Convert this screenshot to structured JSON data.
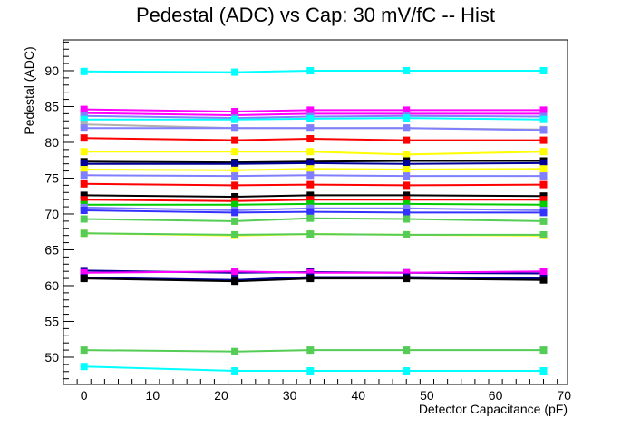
{
  "chart_data": {
    "type": "line",
    "title": "Pedestal (ADC) vs Cap: 30 mV/fC -- Hist",
    "xlabel": "Detector Capacitance (pF)",
    "ylabel": "Pedestal (ADC)",
    "xlim": [
      -3,
      70.5
    ],
    "ylim": [
      46.2,
      94.3
    ],
    "x": [
      0,
      22,
      33,
      47,
      67
    ],
    "xticks": [
      0,
      10,
      20,
      30,
      40,
      50,
      60,
      70
    ],
    "yticks": [
      50,
      55,
      60,
      65,
      70,
      75,
      80,
      85,
      90
    ],
    "grid": false,
    "series": [
      {
        "color": "#00ffff",
        "values": [
          89.9,
          89.8,
          90.0,
          90.0,
          90.0
        ]
      },
      {
        "color": "#ff00ff",
        "values": [
          84.6,
          84.3,
          84.5,
          84.5,
          84.5
        ]
      },
      {
        "color": "#ff00ff",
        "values": [
          84.1,
          83.8,
          84.0,
          84.0,
          84.0
        ]
      },
      {
        "color": "#7f7fff",
        "values": [
          83.7,
          83.4,
          83.6,
          83.7,
          83.6
        ]
      },
      {
        "color": "#00ffff",
        "values": [
          83.2,
          83.2,
          83.3,
          83.4,
          83.2
        ]
      },
      {
        "color": "#b0b0b0",
        "values": [
          82.5,
          82.0,
          82.0,
          82.0,
          81.8
        ]
      },
      {
        "color": "#7f7fff",
        "values": [
          82.0,
          82.0,
          82.0,
          82.0,
          81.7
        ]
      },
      {
        "color": "#ff0000",
        "values": [
          80.6,
          80.3,
          80.5,
          80.3,
          80.3
        ]
      },
      {
        "color": "#ffff00",
        "values": [
          78.7,
          78.7,
          78.7,
          78.3,
          78.7
        ]
      },
      {
        "color": "#000000",
        "values": [
          77.3,
          77.2,
          77.3,
          77.4,
          77.4
        ]
      },
      {
        "color": "#000099",
        "values": [
          77.0,
          77.0,
          77.1,
          77.0,
          77.1
        ]
      },
      {
        "color": "#ffff00",
        "values": [
          76.2,
          76.1,
          76.3,
          76.2,
          76.3
        ]
      },
      {
        "color": "#7f7fff",
        "values": [
          75.4,
          75.3,
          75.4,
          75.3,
          75.3
        ]
      },
      {
        "color": "#ff0000",
        "values": [
          74.2,
          74.0,
          74.1,
          74.0,
          74.1
        ]
      },
      {
        "color": "#000000",
        "values": [
          72.6,
          72.4,
          72.6,
          72.6,
          72.5
        ]
      },
      {
        "color": "#ff0000",
        "values": [
          72.0,
          71.8,
          72.0,
          72.0,
          72.0
        ]
      },
      {
        "color": "#00cc00",
        "values": [
          71.3,
          71.3,
          71.4,
          71.4,
          71.3
        ]
      },
      {
        "color": "#7f7fff",
        "values": [
          70.9,
          70.5,
          70.8,
          70.8,
          70.5
        ]
      },
      {
        "color": "#3333ff",
        "values": [
          70.5,
          70.2,
          70.3,
          70.2,
          70.2
        ]
      },
      {
        "color": "#55cc55",
        "values": [
          69.3,
          69.0,
          69.4,
          69.3,
          69.0
        ]
      },
      {
        "color": "#ffff00",
        "values": [
          67.3,
          67.0,
          67.2,
          67.1,
          67.0
        ]
      },
      {
        "color": "#55cc55",
        "values": [
          67.3,
          67.1,
          67.2,
          67.1,
          67.1
        ]
      },
      {
        "color": "#000099",
        "values": [
          62.1,
          61.8,
          61.9,
          61.8,
          61.7
        ]
      },
      {
        "color": "#ff00ff",
        "values": [
          61.8,
          62.0,
          61.8,
          61.8,
          62.0
        ]
      },
      {
        "color": "#000099",
        "values": [
          61.1,
          60.8,
          61.2,
          61.2,
          61.0
        ]
      },
      {
        "color": "#000000",
        "values": [
          61.0,
          60.6,
          61.0,
          61.0,
          60.8
        ]
      },
      {
        "color": "#55cc55",
        "values": [
          51.0,
          50.8,
          51.0,
          51.0,
          51.0
        ]
      },
      {
        "color": "#00ffff",
        "values": [
          48.7,
          48.1,
          48.1,
          48.1,
          48.1
        ]
      }
    ]
  }
}
